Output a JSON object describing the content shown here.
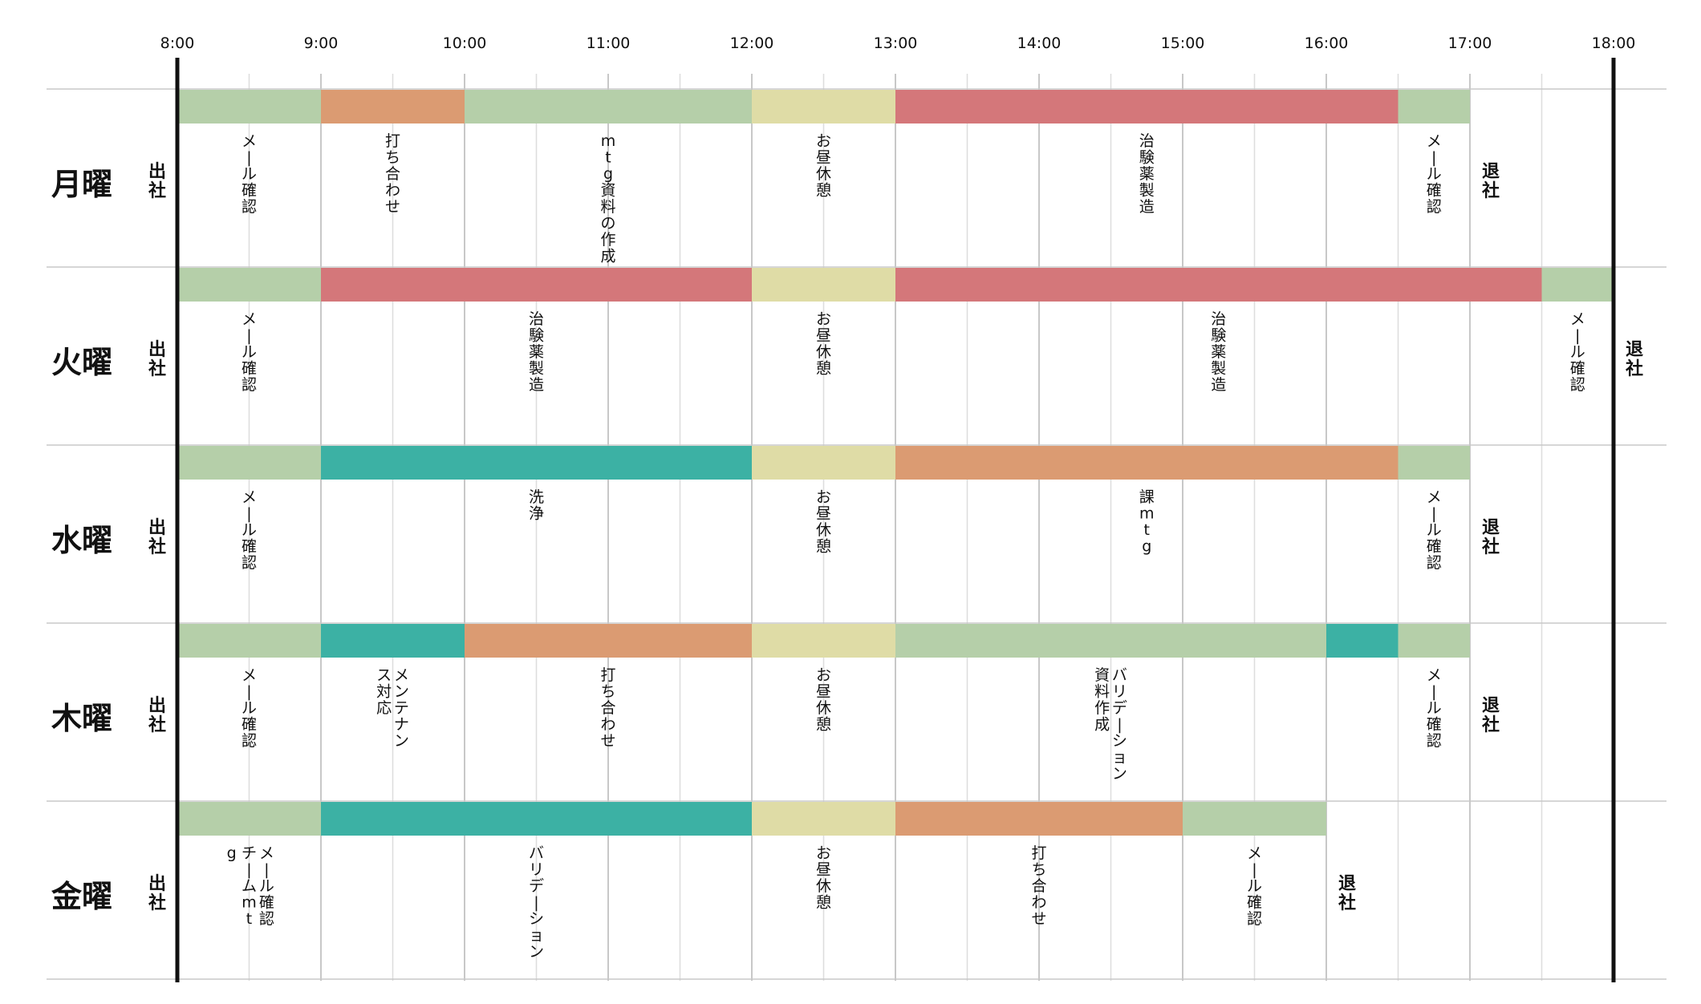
{
  "chart_data": {
    "type": "gantt",
    "time_range": [
      "8:00",
      "18:00"
    ],
    "time_labels": [
      "8:00",
      "9:00",
      "10:00",
      "11:00",
      "12:00",
      "13:00",
      "14:00",
      "15:00",
      "16:00",
      "17:00",
      "18:00"
    ],
    "colors": {
      "mail": "#b5cfa9",
      "meeting": "#db9b72",
      "lunch": "#dfdca6",
      "manufacture": "#d4777a",
      "teal": "#3cb1a4"
    },
    "days": [
      {
        "day": "月曜",
        "start_label": "出社",
        "end_label": "退社",
        "tasks": [
          {
            "start": "8:00",
            "end": "9:00",
            "color": "mail",
            "label": "メール確認"
          },
          {
            "start": "9:00",
            "end": "10:00",
            "color": "meeting",
            "label": "打ち合わせ"
          },
          {
            "start": "10:00",
            "end": "12:00",
            "color": "mail",
            "label": "mtg資料の作成"
          },
          {
            "start": "12:00",
            "end": "13:00",
            "color": "lunch",
            "label": "お昼休憩"
          },
          {
            "start": "13:00",
            "end": "16:30",
            "color": "manufacture",
            "label": "治験薬製造"
          },
          {
            "start": "16:30",
            "end": "17:00",
            "color": "mail",
            "label": "メール確認"
          }
        ]
      },
      {
        "day": "火曜",
        "start_label": "出社",
        "end_label": "退社",
        "tasks": [
          {
            "start": "8:00",
            "end": "9:00",
            "color": "mail",
            "label": "メール確認"
          },
          {
            "start": "9:00",
            "end": "12:00",
            "color": "manufacture",
            "label": "治験薬製造"
          },
          {
            "start": "12:00",
            "end": "13:00",
            "color": "lunch",
            "label": "お昼休憩"
          },
          {
            "start": "13:00",
            "end": "17:30",
            "color": "manufacture",
            "label": "治験薬製造"
          },
          {
            "start": "17:30",
            "end": "18:00",
            "color": "mail",
            "label": "メール確認"
          }
        ]
      },
      {
        "day": "水曜",
        "start_label": "出社",
        "end_label": "退社",
        "tasks": [
          {
            "start": "8:00",
            "end": "9:00",
            "color": "mail",
            "label": "メール確認"
          },
          {
            "start": "9:00",
            "end": "12:00",
            "color": "teal",
            "label": "洗浄"
          },
          {
            "start": "12:00",
            "end": "13:00",
            "color": "lunch",
            "label": "お昼休憩"
          },
          {
            "start": "13:00",
            "end": "16:30",
            "color": "meeting",
            "label": "課mtg"
          },
          {
            "start": "16:30",
            "end": "17:00",
            "color": "mail",
            "label": "メール確認"
          }
        ]
      },
      {
        "day": "木曜",
        "start_label": "出社",
        "end_label": "退社",
        "tasks": [
          {
            "start": "8:00",
            "end": "9:00",
            "color": "mail",
            "label": "メール確認"
          },
          {
            "start": "9:00",
            "end": "10:00",
            "color": "teal",
            "label": "メンテナンス対応"
          },
          {
            "start": "10:00",
            "end": "12:00",
            "color": "meeting",
            "label": "打ち合わせ"
          },
          {
            "start": "12:00",
            "end": "13:00",
            "color": "lunch",
            "label": "お昼休憩"
          },
          {
            "start": "13:00",
            "end": "16:00",
            "color": "mail",
            "label": "バリデーション資料作成"
          },
          {
            "start": "16:00",
            "end": "16:30",
            "color": "teal",
            "label": ""
          },
          {
            "start": "16:30",
            "end": "17:00",
            "color": "mail",
            "label": "メール確認"
          }
        ]
      },
      {
        "day": "金曜",
        "start_label": "出社",
        "end_label": "退社",
        "tasks": [
          {
            "start": "8:00",
            "end": "9:00",
            "color": "mail",
            "label": "メール確認チームmtg"
          },
          {
            "start": "9:00",
            "end": "12:00",
            "color": "teal",
            "label": "バリデーション"
          },
          {
            "start": "12:00",
            "end": "13:00",
            "color": "lunch",
            "label": "お昼休憩"
          },
          {
            "start": "13:00",
            "end": "15:00",
            "color": "meeting",
            "label": "打ち合わせ"
          },
          {
            "start": "15:00",
            "end": "16:00",
            "color": "mail",
            "label": "メール確認"
          }
        ]
      }
    ]
  }
}
